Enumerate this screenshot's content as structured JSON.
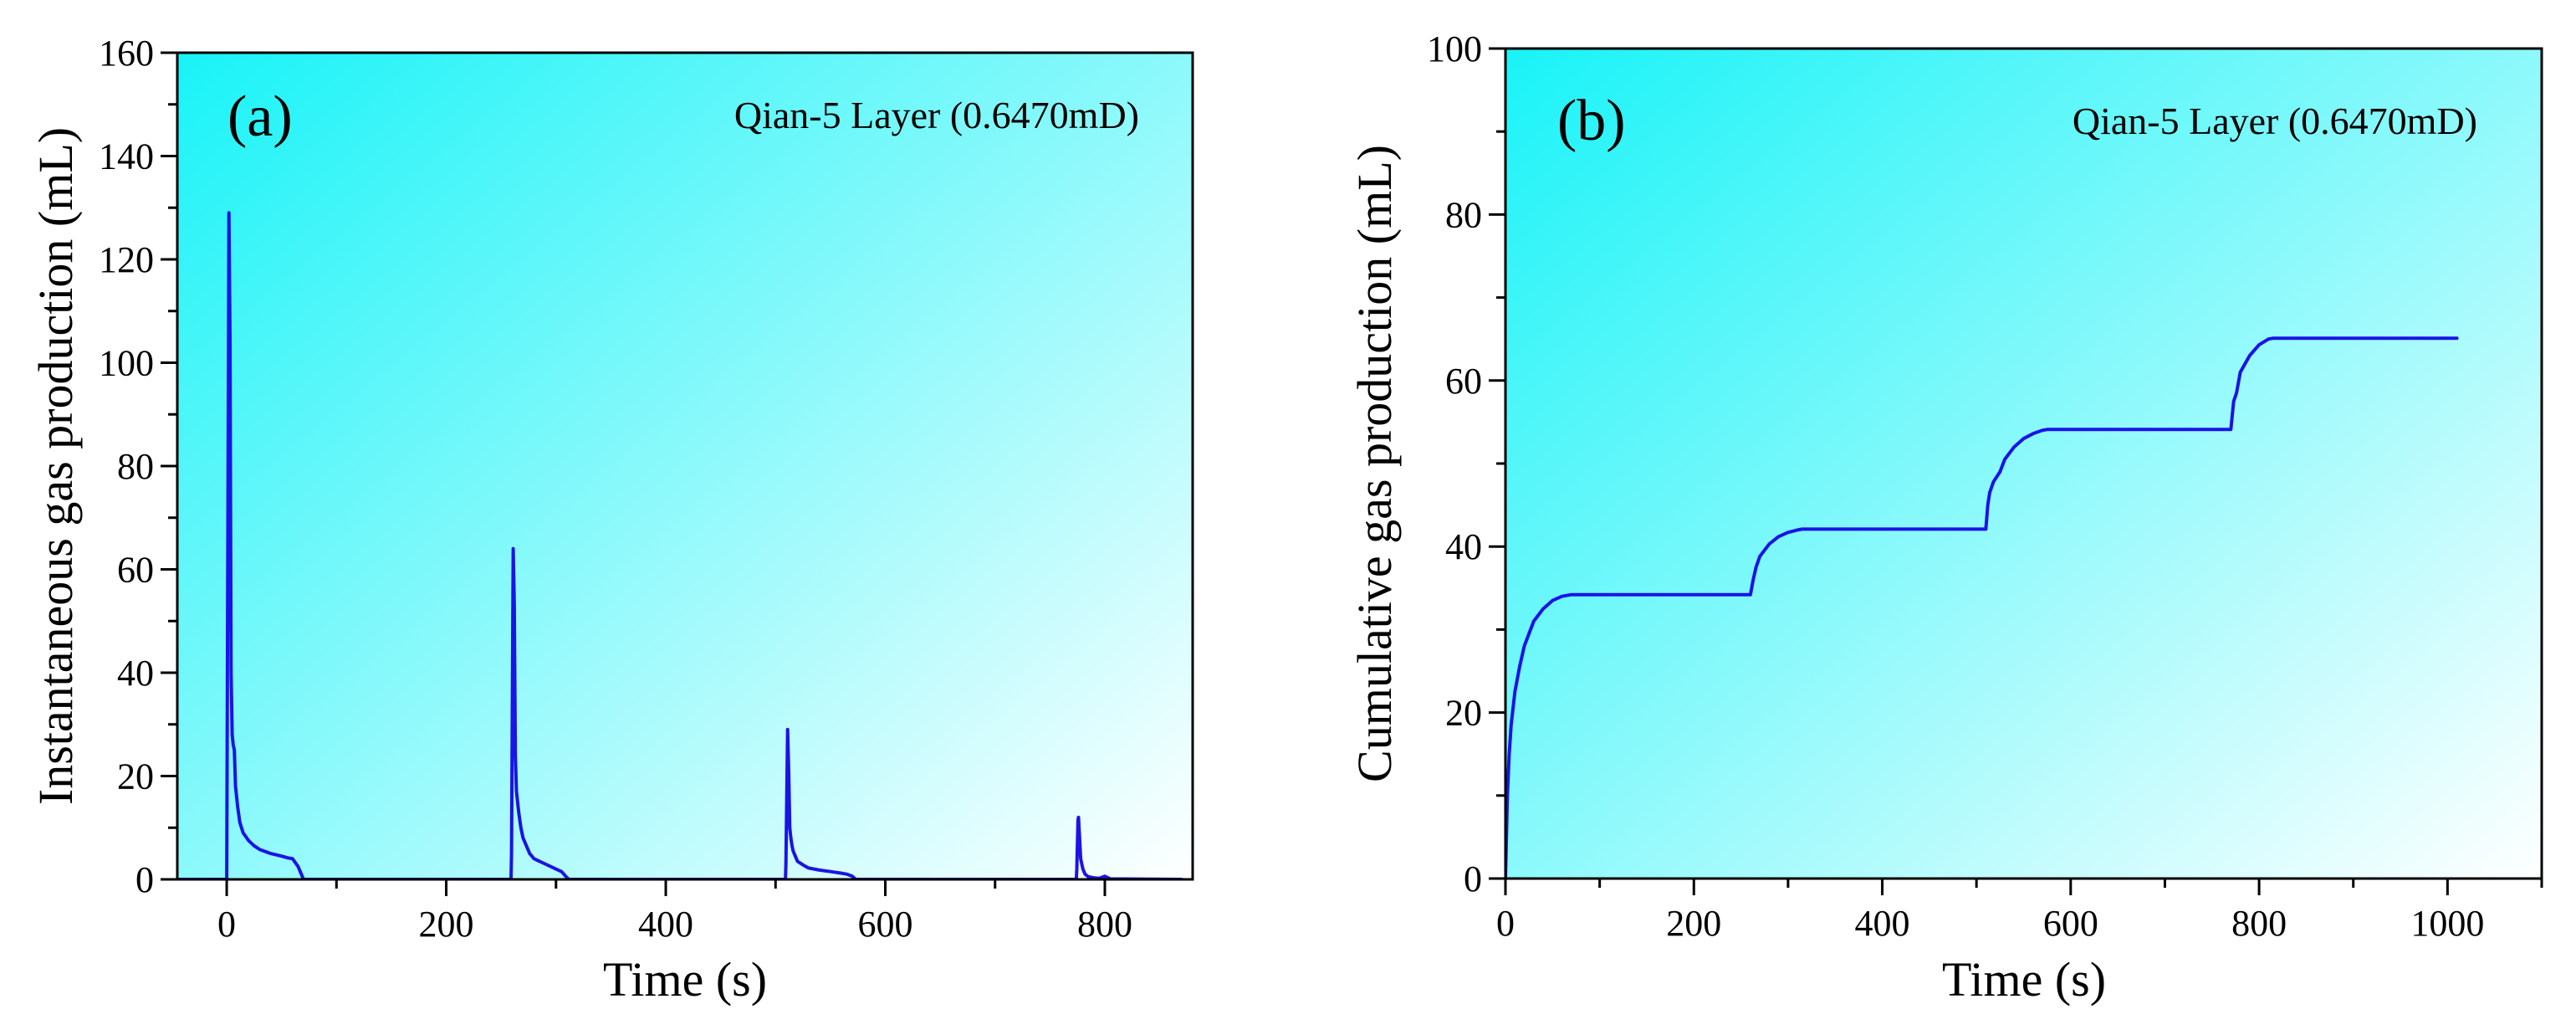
{
  "colors": {
    "line": "#1a14e6",
    "bg_start": "#19f3f7",
    "bg_end": "#ffffff",
    "axis": "#000000"
  },
  "chart_data": [
    {
      "type": "line",
      "panel_label": "(a)",
      "annotation": "Qian-5 Layer (0.6470mD)",
      "xlabel": "Time (s)",
      "ylabel": "Instantaneous gas production (mL)",
      "xlim": [
        -45,
        880
      ],
      "ylim": [
        0,
        160
      ],
      "x_ticks": [
        0,
        200,
        400,
        600,
        800
      ],
      "y_ticks": [
        0,
        20,
        40,
        60,
        80,
        100,
        120,
        140,
        160
      ],
      "series": [
        {
          "name": "Instantaneous gas production",
          "x": [
            -45,
            0,
            0.1,
            2,
            3,
            4,
            5,
            6,
            7,
            8,
            10,
            12,
            15,
            20,
            25,
            30,
            40,
            50,
            55,
            60,
            65,
            68,
            70,
            259,
            259.5,
            261,
            262,
            263,
            264,
            266,
            268,
            270,
            273,
            276,
            280,
            285,
            290,
            300,
            305,
            308,
            310,
            312,
            509,
            509.5,
            511,
            512,
            513,
            514,
            515,
            516,
            518,
            520,
            525,
            530,
            540,
            550,
            560,
            565,
            570,
            573,
            774,
            774.5,
            775.5,
            776,
            777,
            778,
            779,
            780,
            782,
            785,
            790,
            795,
            800,
            805,
            870
          ],
          "y": [
            0,
            0,
            5,
            129,
            105,
            40,
            28,
            26,
            25,
            18,
            14,
            11,
            9,
            7.5,
            6.5,
            5.8,
            5.0,
            4.5,
            4.2,
            4.0,
            2.5,
            1.0,
            0,
            0,
            5,
            64,
            53,
            24,
            17,
            13,
            10,
            8,
            6.5,
            5,
            4,
            3.5,
            3.0,
            2.0,
            1.5,
            0.8,
            0.3,
            0,
            0,
            3,
            29,
            21,
            10,
            8,
            6.5,
            5.5,
            4.5,
            3.5,
            2.8,
            2.2,
            1.8,
            1.5,
            1.2,
            1.0,
            0.6,
            0,
            0,
            2,
            11.5,
            12,
            8,
            4,
            3,
            2,
            1,
            0.5,
            0.3,
            0.2,
            0.6,
            0.1,
            0
          ]
        }
      ]
    },
    {
      "type": "line",
      "panel_label": "(b)",
      "annotation": "Qian-5 Layer (0.6470mD)",
      "xlabel": "Time  (s)",
      "ylabel": "Cumulative gas production (mL)",
      "xlim": [
        0,
        1100
      ],
      "ylim": [
        0,
        100
      ],
      "x_ticks": [
        0,
        200,
        400,
        600,
        800,
        1000
      ],
      "y_ticks": [
        0,
        20,
        40,
        60,
        80,
        100
      ],
      "series": [
        {
          "name": "Cumulative gas production",
          "x": [
            0,
            2,
            4,
            6,
            10,
            15,
            20,
            30,
            40,
            50,
            60,
            70,
            260,
            263,
            266,
            270,
            280,
            290,
            300,
            310,
            315,
            510,
            512,
            514,
            518,
            525,
            530,
            540,
            550,
            560,
            570,
            575,
            770,
            773,
            776,
            780,
            790,
            800,
            810,
            815,
            1010
          ],
          "y": [
            0,
            10,
            15,
            18.5,
            22.5,
            25.5,
            28,
            31,
            32.5,
            33.5,
            34,
            34.2,
            34.2,
            36,
            37.5,
            38.8,
            40.3,
            41.2,
            41.7,
            42,
            42.1,
            42.1,
            45,
            46.5,
            47.8,
            49,
            50.5,
            52,
            53,
            53.6,
            54,
            54.1,
            54.1,
            57.5,
            58.5,
            61,
            63,
            64.3,
            65,
            65.1,
            65.1
          ]
        }
      ]
    }
  ]
}
